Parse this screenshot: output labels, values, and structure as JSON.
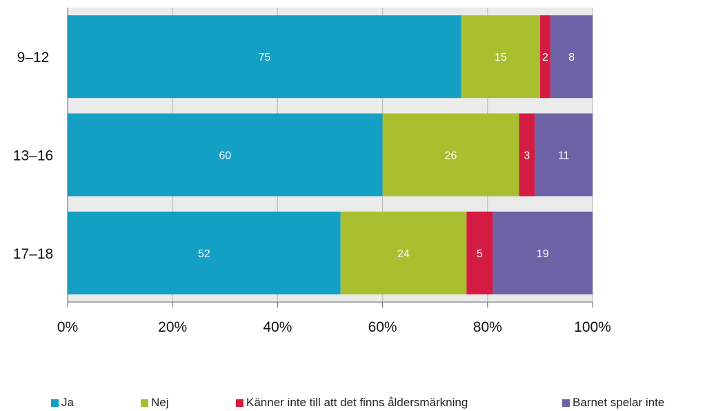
{
  "chart_data": {
    "type": "bar",
    "orientation": "horizontal",
    "stacked": true,
    "categories": [
      "9–12",
      "13–16",
      "17–18"
    ],
    "series": [
      {
        "name": "Ja",
        "values": [
          75,
          60,
          52
        ],
        "color": "#149fc4"
      },
      {
        "name": "Nej",
        "values": [
          15,
          26,
          24
        ],
        "color": "#a9bf2f"
      },
      {
        "name": "Känner inte till att det finns åldersmärkning",
        "values": [
          2,
          3,
          5
        ],
        "color": "#d41c43"
      },
      {
        "name": "Barnet spelar inte",
        "values": [
          8,
          11,
          19
        ],
        "color": "#6e62a7"
      }
    ],
    "xlim": [
      0,
      100
    ],
    "xticks": [
      "0%",
      "20%",
      "40%",
      "60%",
      "80%",
      "100%"
    ],
    "grid": true,
    "legend": "bottom",
    "plot_background": "#ebebeb"
  }
}
